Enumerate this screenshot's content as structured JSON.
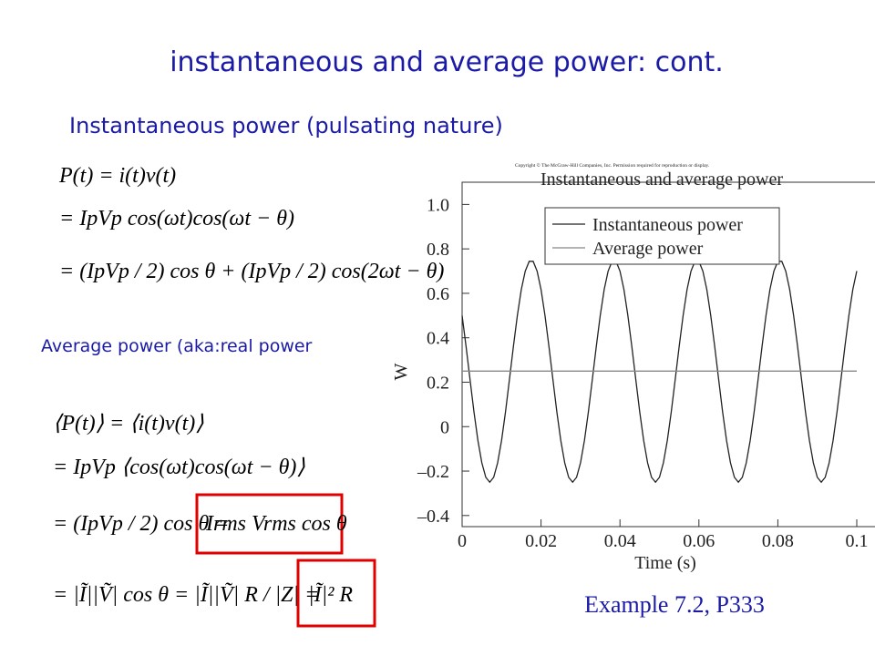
{
  "slide": {
    "title": "instantaneous and average power: cont.",
    "subtitle": "Instantaneous power (pulsating nature)",
    "equations_top": [
      "P(t) = i(t)v(t)",
      "= IpVp cos(ωt)cos(ωt − θ)",
      "= (IpVp / 2) cos θ + (IpVp / 2) cos(2ωt − θ)"
    ],
    "average_label": "Average power (aka:real power",
    "equations_bottom": [
      "⟨P(t)⟩ = ⟨i(t)v(t)⟩",
      "= IpVp ⟨cos(ωt)cos(ωt − θ)⟩",
      "= (IpVp / 2) cos θ =",
      "Irms Vrms cos θ",
      "= |Ĩ||Ṽ| cos θ = |Ĩ||Ṽ| R / |Z| =",
      "|Ĩ|² R"
    ],
    "example": "Example 7.2, P333"
  },
  "chart_data": {
    "type": "line",
    "copyright": "Copyright © The McGraw-Hill Companies, Inc. Permission required for reproduction or display.",
    "title": "Instantaneous and average power",
    "x_label": "Time (s)",
    "y_label": "W",
    "xlim": [
      0,
      0.1
    ],
    "ylim": [
      -0.45,
      1.1
    ],
    "xticks": [
      0,
      0.02,
      0.04,
      0.06,
      0.08,
      0.1
    ],
    "yticks": [
      {
        "value": -0.4,
        "label": "–0.4"
      },
      {
        "value": -0.2,
        "label": "–0.2"
      },
      0,
      0.2,
      0.4,
      0.6,
      0.8,
      {
        "value": 1.0,
        "label": "1.0"
      }
    ],
    "series": [
      {
        "name": "Instantaneous power",
        "color": "#222222",
        "x": [
          0,
          0.001,
          0.002,
          0.003,
          0.004,
          0.005,
          0.006,
          0.007,
          0.008,
          0.009,
          0.01,
          0.011,
          0.012,
          0.013,
          0.014,
          0.015,
          0.016,
          0.017,
          0.018,
          0.019,
          0.02,
          0.021,
          0.022,
          0.023,
          0.024,
          0.025,
          0.026,
          0.027,
          0.028,
          0.029,
          0.03,
          0.031,
          0.032,
          0.033,
          0.034,
          0.035,
          0.036,
          0.037,
          0.038,
          0.039,
          0.04,
          0.041,
          0.042,
          0.043,
          0.044,
          0.045,
          0.046,
          0.047,
          0.048,
          0.049,
          0.05,
          0.051,
          0.052,
          0.053,
          0.054,
          0.055,
          0.056,
          0.057,
          0.058,
          0.059,
          0.06,
          0.061,
          0.062,
          0.063,
          0.064,
          0.065,
          0.066,
          0.067,
          0.068,
          0.069,
          0.07,
          0.071,
          0.072,
          0.073,
          0.074,
          0.075,
          0.076,
          0.077,
          0.078,
          0.079,
          0.08,
          0.081,
          0.082,
          0.083,
          0.084,
          0.085,
          0.086,
          0.087,
          0.088,
          0.089,
          0.09,
          0.091,
          0.092,
          0.093,
          0.094,
          0.095,
          0.096,
          0.097,
          0.098,
          0.099,
          0.1
        ],
        "values": [
          0.5,
          0.361,
          0.213,
          0.067,
          -0.062,
          -0.163,
          -0.228,
          -0.25,
          -0.228,
          -0.163,
          -0.062,
          0.067,
          0.213,
          0.361,
          0.5,
          0.617,
          0.7,
          0.744,
          0.744,
          0.7,
          0.617,
          0.5,
          0.361,
          0.213,
          0.067,
          -0.062,
          -0.163,
          -0.228,
          -0.25,
          -0.228,
          -0.163,
          -0.062,
          0.067,
          0.213,
          0.361,
          0.5,
          0.617,
          0.7,
          0.744,
          0.744,
          0.7,
          0.617,
          0.5,
          0.361,
          0.213,
          0.067,
          -0.062,
          -0.163,
          -0.228,
          -0.25,
          -0.228,
          -0.163,
          -0.062,
          0.067,
          0.213,
          0.361,
          0.5,
          0.617,
          0.7,
          0.744,
          0.744,
          0.7,
          0.617,
          0.5,
          0.361,
          0.213,
          0.067,
          -0.062,
          -0.163,
          -0.228,
          -0.25,
          -0.228,
          -0.163,
          -0.062,
          0.067,
          0.213,
          0.361,
          0.5,
          0.617,
          0.7,
          0.744,
          0.744,
          0.7,
          0.617,
          0.5,
          0.361,
          0.213,
          0.067,
          -0.062,
          -0.163,
          -0.228,
          -0.25,
          -0.228,
          -0.163,
          -0.062,
          0.067,
          0.213,
          0.361,
          0.5,
          0.617,
          0.7
        ]
      },
      {
        "name": "Average power",
        "color": "#888888",
        "x": [
          0,
          0.1
        ],
        "values": [
          0.25,
          0.25
        ]
      }
    ]
  }
}
